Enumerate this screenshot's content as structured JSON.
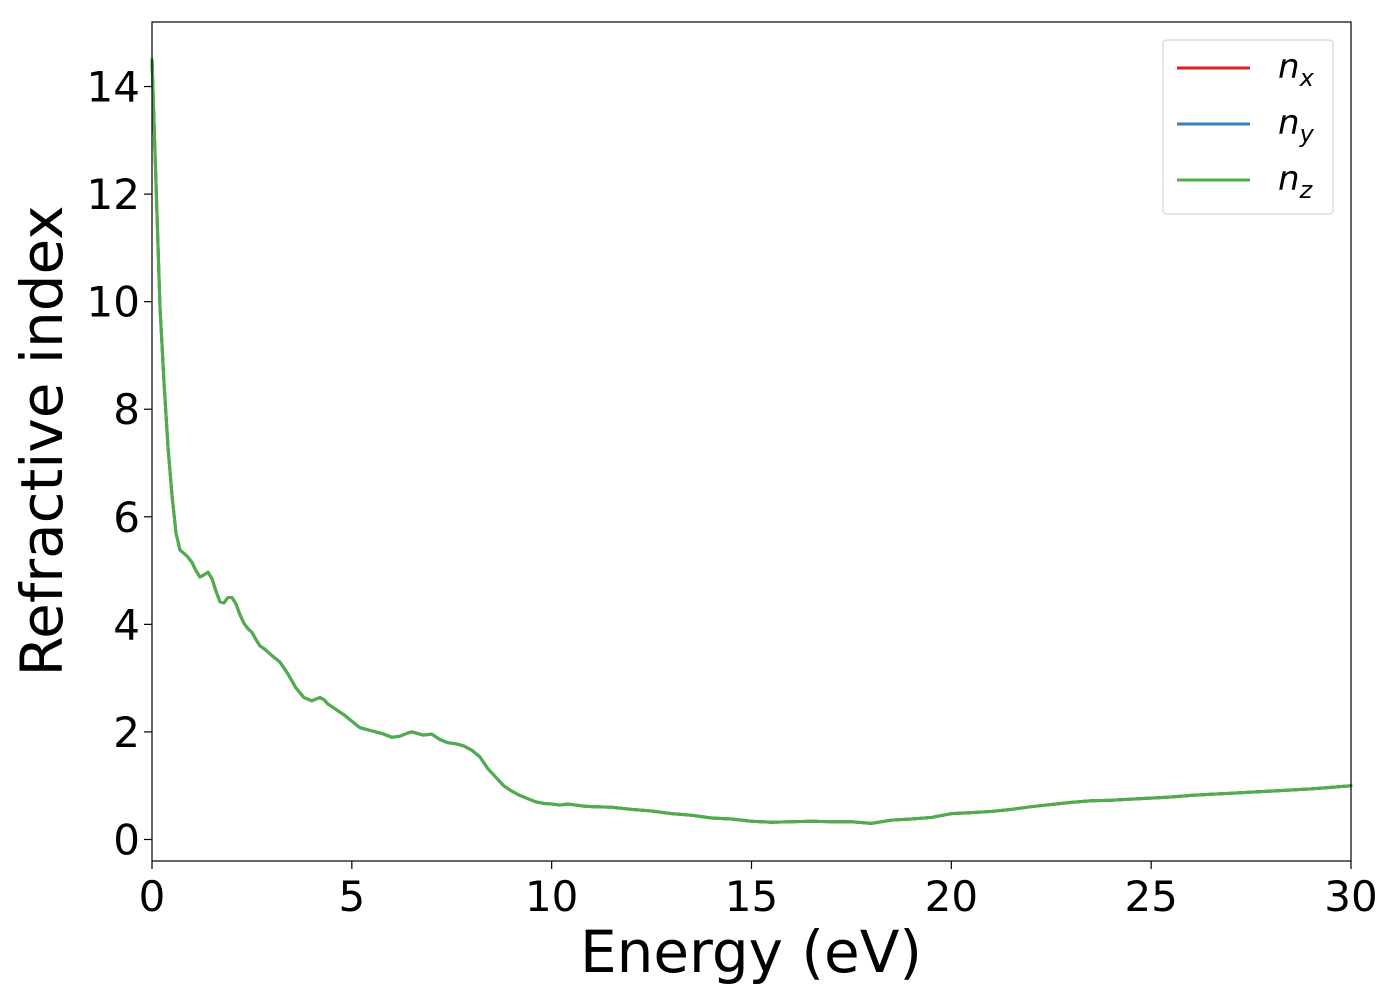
{
  "chart_data": {
    "type": "line",
    "title": "",
    "xlabel": "Energy (eV)",
    "ylabel": "Refractive index",
    "xlim": [
      0,
      30
    ],
    "ylim": [
      -0.4,
      15.2
    ],
    "xticks": [
      0,
      5,
      10,
      15,
      20,
      25,
      30
    ],
    "yticks": [
      0,
      2,
      4,
      6,
      8,
      10,
      12,
      14
    ],
    "grid": false,
    "legend_position": "top-right",
    "series": [
      {
        "name": "n_x",
        "label_main": "n",
        "label_sub": "x",
        "color": "#e41a1c",
        "x": [
          0,
          0.1,
          0.2,
          0.3,
          0.4,
          0.5,
          0.6,
          0.7,
          0.8,
          0.9,
          1.0,
          1.1,
          1.2,
          1.3,
          1.4,
          1.5,
          1.6,
          1.7,
          1.8,
          1.9,
          2.0,
          2.1,
          2.2,
          2.3,
          2.4,
          2.5,
          2.6,
          2.7,
          2.8,
          3.0,
          3.2,
          3.4,
          3.6,
          3.8,
          4.0,
          4.2,
          4.3,
          4.4,
          4.6,
          4.8,
          5.0,
          5.2,
          5.4,
          5.6,
          5.8,
          6.0,
          6.2,
          6.4,
          6.5,
          6.6,
          6.8,
          7.0,
          7.2,
          7.4,
          7.6,
          7.8,
          8.0,
          8.2,
          8.4,
          8.6,
          8.8,
          9.0,
          9.2,
          9.4,
          9.6,
          9.8,
          10.0,
          10.2,
          10.4,
          10.6,
          10.8,
          11.0,
          11.5,
          12.0,
          12.5,
          13.0,
          13.5,
          14.0,
          14.5,
          15.0,
          15.5,
          16.0,
          16.5,
          17.0,
          17.5,
          18.0,
          18.5,
          19.0,
          19.5,
          20.0,
          20.5,
          21.0,
          21.5,
          22.0,
          22.5,
          23.0,
          23.5,
          24.0,
          24.5,
          25.0,
          25.5,
          26.0,
          26.5,
          27.0,
          27.5,
          28.0,
          28.5,
          29.0,
          29.5,
          30.0
        ],
        "y": [
          14.5,
          12.2,
          9.9,
          8.5,
          7.3,
          6.4,
          5.7,
          5.38,
          5.32,
          5.25,
          5.15,
          5.0,
          4.88,
          4.92,
          4.97,
          4.85,
          4.62,
          4.42,
          4.4,
          4.5,
          4.5,
          4.38,
          4.18,
          4.02,
          3.92,
          3.85,
          3.72,
          3.6,
          3.55,
          3.42,
          3.3,
          3.08,
          2.82,
          2.64,
          2.58,
          2.64,
          2.6,
          2.52,
          2.42,
          2.32,
          2.2,
          2.08,
          2.04,
          2.0,
          1.96,
          1.9,
          1.92,
          1.98,
          2.0,
          1.98,
          1.94,
          1.96,
          1.86,
          1.8,
          1.78,
          1.74,
          1.66,
          1.54,
          1.32,
          1.16,
          1.0,
          0.9,
          0.82,
          0.76,
          0.7,
          0.67,
          0.66,
          0.64,
          0.66,
          0.64,
          0.62,
          0.61,
          0.6,
          0.56,
          0.53,
          0.48,
          0.45,
          0.4,
          0.38,
          0.34,
          0.32,
          0.33,
          0.34,
          0.33,
          0.33,
          0.3,
          0.36,
          0.38,
          0.41,
          0.48,
          0.5,
          0.52,
          0.56,
          0.61,
          0.65,
          0.69,
          0.72,
          0.73,
          0.75,
          0.77,
          0.79,
          0.82,
          0.84,
          0.86,
          0.88,
          0.9,
          0.92,
          0.94,
          0.97,
          1.0
        ]
      },
      {
        "name": "n_y",
        "label_main": "n",
        "label_sub": "y",
        "color": "#377eb8",
        "x": [
          0,
          0.1,
          0.2,
          0.3,
          0.4,
          0.5,
          0.6,
          0.7,
          0.8,
          0.9,
          1.0,
          1.1,
          1.2,
          1.3,
          1.4,
          1.5,
          1.6,
          1.7,
          1.8,
          1.9,
          2.0,
          2.1,
          2.2,
          2.3,
          2.4,
          2.5,
          2.6,
          2.7,
          2.8,
          3.0,
          3.2,
          3.4,
          3.6,
          3.8,
          4.0,
          4.2,
          4.3,
          4.4,
          4.6,
          4.8,
          5.0,
          5.2,
          5.4,
          5.6,
          5.8,
          6.0,
          6.2,
          6.4,
          6.5,
          6.6,
          6.8,
          7.0,
          7.2,
          7.4,
          7.6,
          7.8,
          8.0,
          8.2,
          8.4,
          8.6,
          8.8,
          9.0,
          9.2,
          9.4,
          9.6,
          9.8,
          10.0,
          10.2,
          10.4,
          10.6,
          10.8,
          11.0,
          11.5,
          12.0,
          12.5,
          13.0,
          13.5,
          14.0,
          14.5,
          15.0,
          15.5,
          16.0,
          16.5,
          17.0,
          17.5,
          18.0,
          18.5,
          19.0,
          19.5,
          20.0,
          20.5,
          21.0,
          21.5,
          22.0,
          22.5,
          23.0,
          23.5,
          24.0,
          24.5,
          25.0,
          25.5,
          26.0,
          26.5,
          27.0,
          27.5,
          28.0,
          28.5,
          29.0,
          29.5,
          30.0
        ],
        "y": [
          14.5,
          12.2,
          9.9,
          8.5,
          7.3,
          6.4,
          5.7,
          5.38,
          5.32,
          5.25,
          5.15,
          5.0,
          4.88,
          4.92,
          4.97,
          4.85,
          4.62,
          4.42,
          4.4,
          4.5,
          4.5,
          4.38,
          4.18,
          4.02,
          3.92,
          3.85,
          3.72,
          3.6,
          3.55,
          3.42,
          3.3,
          3.08,
          2.82,
          2.64,
          2.58,
          2.64,
          2.6,
          2.52,
          2.42,
          2.32,
          2.2,
          2.08,
          2.04,
          2.0,
          1.96,
          1.9,
          1.92,
          1.98,
          2.0,
          1.98,
          1.94,
          1.96,
          1.86,
          1.8,
          1.78,
          1.74,
          1.66,
          1.54,
          1.32,
          1.16,
          1.0,
          0.9,
          0.82,
          0.76,
          0.7,
          0.67,
          0.66,
          0.64,
          0.66,
          0.64,
          0.62,
          0.61,
          0.6,
          0.56,
          0.53,
          0.48,
          0.45,
          0.4,
          0.38,
          0.34,
          0.32,
          0.33,
          0.34,
          0.33,
          0.33,
          0.3,
          0.36,
          0.38,
          0.41,
          0.48,
          0.5,
          0.52,
          0.56,
          0.61,
          0.65,
          0.69,
          0.72,
          0.73,
          0.75,
          0.77,
          0.79,
          0.82,
          0.84,
          0.86,
          0.88,
          0.9,
          0.92,
          0.94,
          0.97,
          1.0
        ]
      },
      {
        "name": "n_z",
        "label_main": "n",
        "label_sub": "z",
        "color": "#4daf4a",
        "x": [
          0,
          0.1,
          0.2,
          0.3,
          0.4,
          0.5,
          0.6,
          0.7,
          0.8,
          0.9,
          1.0,
          1.1,
          1.2,
          1.3,
          1.4,
          1.5,
          1.6,
          1.7,
          1.8,
          1.9,
          2.0,
          2.1,
          2.2,
          2.3,
          2.4,
          2.5,
          2.6,
          2.7,
          2.8,
          3.0,
          3.2,
          3.4,
          3.6,
          3.8,
          4.0,
          4.2,
          4.3,
          4.4,
          4.6,
          4.8,
          5.0,
          5.2,
          5.4,
          5.6,
          5.8,
          6.0,
          6.2,
          6.4,
          6.5,
          6.6,
          6.8,
          7.0,
          7.2,
          7.4,
          7.6,
          7.8,
          8.0,
          8.2,
          8.4,
          8.6,
          8.8,
          9.0,
          9.2,
          9.4,
          9.6,
          9.8,
          10.0,
          10.2,
          10.4,
          10.6,
          10.8,
          11.0,
          11.5,
          12.0,
          12.5,
          13.0,
          13.5,
          14.0,
          14.5,
          15.0,
          15.5,
          16.0,
          16.5,
          17.0,
          17.5,
          18.0,
          18.5,
          19.0,
          19.5,
          20.0,
          20.5,
          21.0,
          21.5,
          22.0,
          22.5,
          23.0,
          23.5,
          24.0,
          24.5,
          25.0,
          25.5,
          26.0,
          26.5,
          27.0,
          27.5,
          28.0,
          28.5,
          29.0,
          29.5,
          30.0
        ],
        "y": [
          14.5,
          12.2,
          9.9,
          8.5,
          7.3,
          6.4,
          5.7,
          5.38,
          5.32,
          5.25,
          5.15,
          5.0,
          4.88,
          4.92,
          4.97,
          4.85,
          4.62,
          4.42,
          4.4,
          4.5,
          4.5,
          4.38,
          4.18,
          4.02,
          3.92,
          3.85,
          3.72,
          3.6,
          3.55,
          3.42,
          3.3,
          3.08,
          2.82,
          2.64,
          2.58,
          2.64,
          2.6,
          2.52,
          2.42,
          2.32,
          2.2,
          2.08,
          2.04,
          2.0,
          1.96,
          1.9,
          1.92,
          1.98,
          2.0,
          1.98,
          1.94,
          1.96,
          1.86,
          1.8,
          1.78,
          1.74,
          1.66,
          1.54,
          1.32,
          1.16,
          1.0,
          0.9,
          0.82,
          0.76,
          0.7,
          0.67,
          0.66,
          0.64,
          0.66,
          0.64,
          0.62,
          0.61,
          0.6,
          0.56,
          0.53,
          0.48,
          0.45,
          0.4,
          0.38,
          0.34,
          0.32,
          0.33,
          0.34,
          0.33,
          0.33,
          0.3,
          0.36,
          0.38,
          0.41,
          0.48,
          0.5,
          0.52,
          0.56,
          0.61,
          0.65,
          0.69,
          0.72,
          0.73,
          0.75,
          0.77,
          0.79,
          0.82,
          0.84,
          0.86,
          0.88,
          0.9,
          0.92,
          0.94,
          0.97,
          1.0
        ]
      }
    ]
  }
}
